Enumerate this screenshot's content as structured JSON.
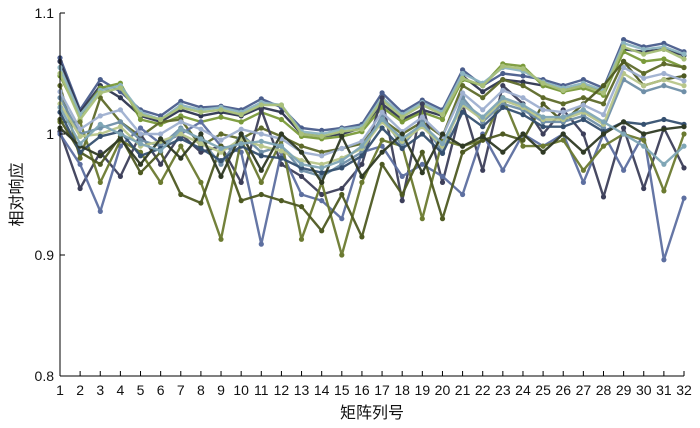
{
  "chart_data": {
    "type": "line",
    "title": "",
    "xlabel": "矩阵列号",
    "ylabel": "相对响应",
    "categories": [
      1,
      2,
      3,
      4,
      5,
      6,
      7,
      8,
      9,
      10,
      11,
      12,
      13,
      14,
      15,
      16,
      17,
      18,
      19,
      20,
      21,
      22,
      23,
      24,
      25,
      26,
      27,
      28,
      29,
      30,
      31,
      32
    ],
    "ylim": [
      0.8,
      1.1
    ],
    "yticks": [
      "0.8",
      "0.9",
      "1",
      "1.1"
    ],
    "grid": false,
    "legend": "none",
    "series": [
      {
        "color": "#4a5d8c",
        "values": [
          1.063,
          1.02,
          1.045,
          1.035,
          1.02,
          1.015,
          1.027,
          1.022,
          1.023,
          1.02,
          1.029,
          1.022,
          1.005,
          1.003,
          1.005,
          1.008,
          1.034,
          1.018,
          1.028,
          1.02,
          1.053,
          1.04,
          1.05,
          1.048,
          1.045,
          1.04,
          1.045,
          1.038,
          1.078,
          1.072,
          1.075,
          1.068
        ]
      },
      {
        "color": "#2e3650",
        "values": [
          1.06,
          1.018,
          1.04,
          1.03,
          1.015,
          1.01,
          1.02,
          1.015,
          1.018,
          1.015,
          1.022,
          1.018,
          1.0,
          0.998,
          1.0,
          1.005,
          1.025,
          1.012,
          1.02,
          1.015,
          1.048,
          1.035,
          1.045,
          1.043,
          1.04,
          1.036,
          1.04,
          1.035,
          1.07,
          1.068,
          1.07,
          1.065
        ]
      },
      {
        "color": "#7a9a3a",
        "values": [
          1.048,
          1.015,
          1.038,
          1.042,
          1.012,
          1.008,
          1.015,
          1.01,
          1.014,
          1.01,
          1.018,
          1.012,
          0.998,
          0.996,
          0.998,
          1.002,
          1.022,
          1.01,
          1.018,
          1.012,
          1.045,
          1.04,
          1.058,
          1.056,
          1.04,
          1.035,
          1.038,
          1.032,
          1.068,
          1.06,
          1.062,
          1.055
        ]
      },
      {
        "color": "#5e6a2a",
        "values": [
          1.04,
          0.98,
          1.03,
          1.01,
          0.998,
          1.01,
          1.012,
          0.99,
          1.0,
          0.996,
          1.005,
          0.998,
          0.99,
          0.985,
          0.988,
          0.992,
          1.012,
          1.0,
          1.01,
          0.998,
          1.04,
          1.03,
          1.045,
          1.04,
          1.03,
          1.025,
          1.03,
          1.025,
          1.06,
          1.05,
          1.058,
          1.055
        ]
      },
      {
        "color": "#8cb4c0",
        "values": [
          1.055,
          1.016,
          1.036,
          1.04,
          1.018,
          1.012,
          1.024,
          1.02,
          1.022,
          1.018,
          1.026,
          1.024,
          1.002,
          1.0,
          1.004,
          1.006,
          1.03,
          1.016,
          1.026,
          1.018,
          1.05,
          1.042,
          1.055,
          1.052,
          1.043,
          1.038,
          1.042,
          1.036,
          1.075,
          1.07,
          1.072,
          1.066
        ]
      },
      {
        "color": "#a9c07a",
        "values": [
          1.05,
          1.012,
          1.034,
          1.038,
          1.016,
          1.012,
          1.022,
          1.018,
          1.02,
          1.016,
          1.024,
          1.024,
          1.0,
          0.998,
          1.002,
          1.004,
          1.028,
          1.014,
          1.024,
          1.016,
          1.046,
          1.04,
          1.056,
          1.054,
          1.042,
          1.036,
          1.04,
          1.034,
          1.072,
          1.066,
          1.07,
          1.062
        ]
      },
      {
        "color": "#3d3f5a",
        "values": [
          1.002,
          0.955,
          0.985,
          0.965,
          1.0,
          0.975,
          1.0,
          0.985,
          0.99,
          0.96,
          1.02,
          0.975,
          0.965,
          0.95,
          0.955,
          0.975,
          1.03,
          0.945,
          1.025,
          0.96,
          1.025,
          0.97,
          1.04,
          1.025,
          1.0,
          1.02,
          1.0,
          0.948,
          1.005,
          0.955,
          1.005,
          0.972
        ]
      },
      {
        "color": "#5d6fa0",
        "values": [
          1.0,
          0.975,
          0.936,
          0.99,
          1.005,
          0.992,
          1.0,
          1.01,
          0.99,
          0.985,
          0.909,
          0.985,
          0.95,
          0.945,
          0.93,
          0.985,
          0.99,
          0.965,
          0.975,
          0.965,
          0.95,
          1.0,
          0.97,
          1.0,
          0.99,
          1.0,
          0.96,
          1.0,
          0.97,
          1.0,
          0.896,
          0.947
        ]
      },
      {
        "color": "#6b7a30",
        "values": [
          1.01,
          1.01,
          0.96,
          0.995,
          0.985,
          0.96,
          0.99,
          0.96,
          0.913,
          0.995,
          0.96,
          0.995,
          0.913,
          0.96,
          0.9,
          0.96,
          0.995,
          0.99,
          0.93,
          0.995,
          0.99,
          0.995,
          1.03,
          0.99,
          0.99,
          0.995,
          0.97,
          0.99,
          1.0,
          0.995,
          0.953,
          1.0
        ]
      },
      {
        "color": "#4e5a22",
        "values": [
          1.012,
          0.985,
          0.975,
          0.998,
          0.968,
          0.985,
          0.95,
          0.943,
          0.99,
          0.945,
          0.95,
          0.945,
          0.94,
          0.92,
          0.95,
          0.915,
          0.975,
          0.95,
          0.985,
          0.93,
          0.985,
          0.995,
          1.0,
          0.995,
          1.025,
          1.01,
          1.025,
          1.04,
          1.06,
          1.04,
          1.045,
          1.048
        ]
      },
      {
        "color": "#6f8fa8",
        "values": [
          1.03,
          1.0,
          1.005,
          1.01,
          0.995,
          0.99,
          1.005,
          0.995,
          0.975,
          1.0,
          0.985,
          0.99,
          0.97,
          0.965,
          0.975,
          0.985,
          1.015,
          0.99,
          1.01,
          0.985,
          1.03,
          1.01,
          1.025,
          1.02,
          1.01,
          1.01,
          1.015,
          1.005,
          1.045,
          1.035,
          1.04,
          1.035
        ]
      },
      {
        "color": "#b8c68a",
        "values": [
          1.025,
          0.998,
          1.0,
          1.006,
          0.99,
          0.994,
          1.0,
          0.992,
          0.985,
          0.996,
          0.99,
          0.986,
          0.978,
          0.975,
          0.98,
          0.988,
          1.01,
          0.994,
          1.006,
          0.99,
          1.024,
          1.012,
          1.028,
          1.022,
          1.012,
          1.012,
          1.018,
          1.008,
          1.05,
          1.04,
          1.045,
          1.04
        ]
      },
      {
        "color": "#355070",
        "values": [
          1.018,
          0.985,
          0.998,
          1.002,
          0.982,
          0.988,
          0.996,
          0.988,
          0.978,
          0.99,
          0.982,
          0.98,
          0.972,
          0.968,
          0.972,
          0.982,
          1.005,
          0.988,
          1.0,
          0.984,
          1.018,
          1.006,
          1.022,
          1.016,
          1.006,
          1.006,
          1.012,
          1.002,
          1.01,
          1.008,
          1.012,
          1.008
        ]
      },
      {
        "color": "#9fb0d0",
        "values": [
          1.035,
          1.004,
          1.015,
          1.02,
          1.0,
          1.0,
          1.01,
          1.004,
          0.995,
          1.004,
          1.0,
          0.996,
          0.985,
          0.982,
          0.988,
          0.994,
          1.018,
          1.002,
          1.014,
          0.998,
          1.034,
          1.02,
          1.036,
          1.03,
          1.02,
          1.018,
          1.024,
          1.016,
          1.055,
          1.046,
          1.05,
          1.044
        ]
      },
      {
        "color": "#2f3a24",
        "values": [
          1.005,
          0.99,
          0.982,
          0.996,
          0.975,
          0.996,
          0.98,
          1.0,
          0.965,
          1.0,
          0.97,
          1.0,
          0.985,
          0.96,
          0.998,
          0.965,
          0.985,
          1.0,
          0.968,
          1.0,
          0.99,
          0.998,
          0.985,
          1.0,
          0.985,
          1.0,
          0.985,
          1.0,
          1.01,
          1.0,
          1.004,
          1.006
        ]
      },
      {
        "color": "#7fa6b6",
        "values": [
          1.022,
          0.992,
          1.008,
          1.0,
          0.992,
          0.986,
          1.004,
          0.996,
          0.988,
          0.992,
          0.994,
          0.99,
          0.975,
          0.972,
          0.978,
          0.99,
          1.012,
          0.996,
          1.008,
          0.992,
          1.026,
          1.014,
          1.03,
          1.024,
          1.014,
          1.014,
          1.02,
          1.01,
          1.0,
          0.99,
          0.975,
          0.99
        ]
      }
    ]
  }
}
